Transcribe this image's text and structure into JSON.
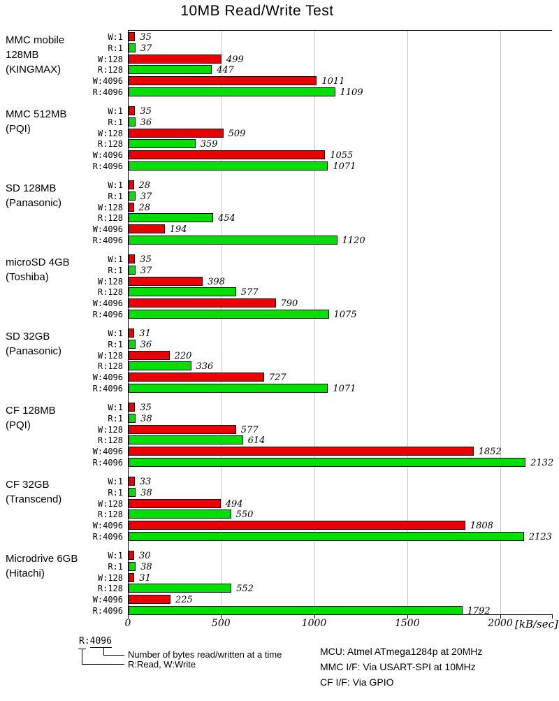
{
  "title": "10MB Read/Write Test",
  "colors": {
    "write_bar": "#ea0000",
    "read_bar": "#00e000",
    "gridline": "#c6c6c6",
    "axis": "#000000",
    "background": "#ffffff"
  },
  "chart_data": {
    "type": "bar",
    "orientation": "horizontal",
    "title": "10MB Read/Write Test",
    "xlabel": "[kB/sec]",
    "xlim": [
      0,
      2270
    ],
    "x_ticks": [
      0,
      500,
      1000,
      1500,
      2000
    ],
    "gridlines": [
      500,
      1000,
      1500,
      2000
    ],
    "grid": true,
    "legend_position": "bottom-left",
    "row_labels": [
      "W:1",
      "R:1",
      "W:128",
      "R:128",
      "W:4096",
      "R:4096"
    ],
    "groups": [
      {
        "label_lines": [
          "MMC mobile",
          "128MB",
          "(KINGMAX)"
        ],
        "values": [
          35,
          37,
          499,
          447,
          1011,
          1109
        ]
      },
      {
        "label_lines": [
          "MMC 512MB",
          "(PQI)"
        ],
        "values": [
          35,
          36,
          509,
          359,
          1055,
          1071
        ]
      },
      {
        "label_lines": [
          "SD 128MB",
          "(Panasonic)"
        ],
        "values": [
          28,
          37,
          28,
          454,
          194,
          1120
        ]
      },
      {
        "label_lines": [
          "microSD 4GB",
          "(Toshiba)"
        ],
        "values": [
          35,
          37,
          398,
          577,
          790,
          1075
        ]
      },
      {
        "label_lines": [
          "SD 32GB",
          "(Panasonic)"
        ],
        "values": [
          31,
          36,
          220,
          336,
          727,
          1071
        ]
      },
      {
        "label_lines": [
          "CF 128MB",
          "(PQI)"
        ],
        "values": [
          35,
          38,
          577,
          614,
          1852,
          2132
        ]
      },
      {
        "label_lines": [
          "CF 32GB",
          "(Transcend)"
        ],
        "values": [
          33,
          38,
          494,
          550,
          1808,
          2123
        ]
      },
      {
        "label_lines": [
          "Microdrive 6GB",
          "(Hitachi)"
        ],
        "values": [
          30,
          38,
          31,
          552,
          225,
          1792
        ]
      }
    ]
  },
  "axis": {
    "unit_label": "[kB/sec]"
  },
  "legend": {
    "key_prefix": "R:",
    "key_suffix": "4096",
    "note_bytes": "Number of bytes read/written at a time",
    "note_rw": "R:Read, W:Write"
  },
  "footnotes": {
    "mcu": "MCU: Atmel ATmega1284p at 20MHz",
    "mmc_if": "MMC I/F: Via USART-SPI at 10MHz",
    "cf_if": "CF I/F: Via GPIO"
  }
}
